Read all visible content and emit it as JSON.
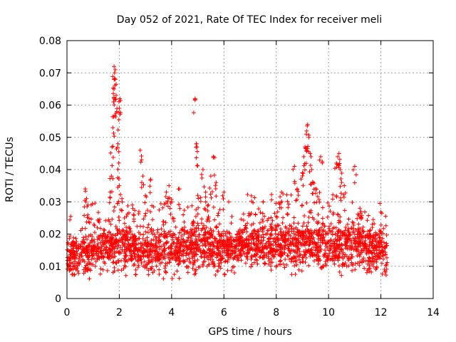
{
  "chart_data": {
    "type": "scatter",
    "title": "Day 052 of 2021, Rate Of TEC Index for receiver meli",
    "xlabel": "GPS time / hours",
    "ylabel": "ROTI / TECUs",
    "xlim": [
      0,
      14
    ],
    "ylim": [
      0,
      0.08
    ],
    "xticks": [
      0,
      2,
      4,
      6,
      8,
      10,
      12,
      14
    ],
    "xtick_labels": [
      "0",
      "2",
      "4",
      "6",
      "8",
      "10",
      "12",
      "14"
    ],
    "yticks": [
      0,
      0.01,
      0.02,
      0.03,
      0.04,
      0.05,
      0.06,
      0.07,
      0.08
    ],
    "ytick_labels": [
      "0",
      "0.01",
      "0.02",
      "0.03",
      "0.04",
      "0.05",
      "0.06",
      "0.07",
      "0.08"
    ],
    "grid": true,
    "marker": "+",
    "series": [
      {
        "name": "ROTI",
        "color": "#ff0000",
        "x_range": [
          0,
          12.25
        ],
        "baseline_envelope": [
          {
            "x": 0.0,
            "low": 0.005,
            "high": 0.018
          },
          {
            "x": 0.5,
            "low": 0.005,
            "high": 0.021
          },
          {
            "x": 1.0,
            "low": 0.005,
            "high": 0.022
          },
          {
            "x": 1.5,
            "low": 0.006,
            "high": 0.024
          },
          {
            "x": 2.0,
            "low": 0.006,
            "high": 0.024
          },
          {
            "x": 3.0,
            "low": 0.005,
            "high": 0.022
          },
          {
            "x": 4.0,
            "low": 0.005,
            "high": 0.023
          },
          {
            "x": 5.0,
            "low": 0.006,
            "high": 0.025
          },
          {
            "x": 6.0,
            "low": 0.006,
            "high": 0.022
          },
          {
            "x": 7.0,
            "low": 0.007,
            "high": 0.025
          },
          {
            "x": 8.0,
            "low": 0.007,
            "high": 0.025
          },
          {
            "x": 9.0,
            "low": 0.006,
            "high": 0.026
          },
          {
            "x": 10.0,
            "low": 0.006,
            "high": 0.025
          },
          {
            "x": 11.0,
            "low": 0.006,
            "high": 0.025
          },
          {
            "x": 12.2,
            "low": 0.005,
            "high": 0.022
          }
        ],
        "outliers": [
          {
            "x": 0.7,
            "y": 0.034
          },
          {
            "x": 0.75,
            "y": 0.031
          },
          {
            "x": 0.8,
            "y": 0.029
          },
          {
            "x": 1.65,
            "y": 0.033
          },
          {
            "x": 1.7,
            "y": 0.038
          },
          {
            "x": 1.72,
            "y": 0.047
          },
          {
            "x": 1.75,
            "y": 0.053
          },
          {
            "x": 1.78,
            "y": 0.061
          },
          {
            "x": 1.8,
            "y": 0.065
          },
          {
            "x": 1.8,
            "y": 0.072
          },
          {
            "x": 1.82,
            "y": 0.07
          },
          {
            "x": 1.85,
            "y": 0.068
          },
          {
            "x": 1.88,
            "y": 0.063
          },
          {
            "x": 1.9,
            "y": 0.058
          },
          {
            "x": 1.95,
            "y": 0.048
          },
          {
            "x": 1.98,
            "y": 0.042
          },
          {
            "x": 2.0,
            "y": 0.059
          },
          {
            "x": 2.02,
            "y": 0.062
          },
          {
            "x": 2.0,
            "y": 0.035
          },
          {
            "x": 2.1,
            "y": 0.031
          },
          {
            "x": 2.5,
            "y": 0.029
          },
          {
            "x": 2.8,
            "y": 0.046
          },
          {
            "x": 2.9,
            "y": 0.038
          },
          {
            "x": 3.0,
            "y": 0.032
          },
          {
            "x": 3.2,
            "y": 0.037
          },
          {
            "x": 3.8,
            "y": 0.033
          },
          {
            "x": 3.9,
            "y": 0.035
          },
          {
            "x": 4.0,
            "y": 0.03
          },
          {
            "x": 4.3,
            "y": 0.034
          },
          {
            "x": 4.9,
            "y": 0.062
          },
          {
            "x": 4.95,
            "y": 0.048
          },
          {
            "x": 4.97,
            "y": 0.047
          },
          {
            "x": 5.0,
            "y": 0.032
          },
          {
            "x": 5.2,
            "y": 0.04
          },
          {
            "x": 5.3,
            "y": 0.033
          },
          {
            "x": 5.5,
            "y": 0.038
          },
          {
            "x": 5.6,
            "y": 0.044
          },
          {
            "x": 5.7,
            "y": 0.036
          },
          {
            "x": 5.4,
            "y": 0.029
          },
          {
            "x": 6.0,
            "y": 0.033
          },
          {
            "x": 7.5,
            "y": 0.03
          },
          {
            "x": 8.2,
            "y": 0.033
          },
          {
            "x": 8.7,
            "y": 0.041
          },
          {
            "x": 8.8,
            "y": 0.034
          },
          {
            "x": 9.0,
            "y": 0.039
          },
          {
            "x": 9.05,
            "y": 0.044
          },
          {
            "x": 9.1,
            "y": 0.047
          },
          {
            "x": 9.15,
            "y": 0.051
          },
          {
            "x": 9.2,
            "y": 0.054
          },
          {
            "x": 9.25,
            "y": 0.05
          },
          {
            "x": 9.3,
            "y": 0.045
          },
          {
            "x": 9.35,
            "y": 0.04
          },
          {
            "x": 9.4,
            "y": 0.036
          },
          {
            "x": 9.5,
            "y": 0.034
          },
          {
            "x": 9.7,
            "y": 0.044
          },
          {
            "x": 10.3,
            "y": 0.042
          },
          {
            "x": 10.35,
            "y": 0.044
          },
          {
            "x": 10.4,
            "y": 0.045
          },
          {
            "x": 10.45,
            "y": 0.04
          },
          {
            "x": 10.5,
            "y": 0.036
          },
          {
            "x": 10.6,
            "y": 0.035
          },
          {
            "x": 11.0,
            "y": 0.041
          },
          {
            "x": 11.2,
            "y": 0.028
          }
        ]
      }
    ]
  }
}
